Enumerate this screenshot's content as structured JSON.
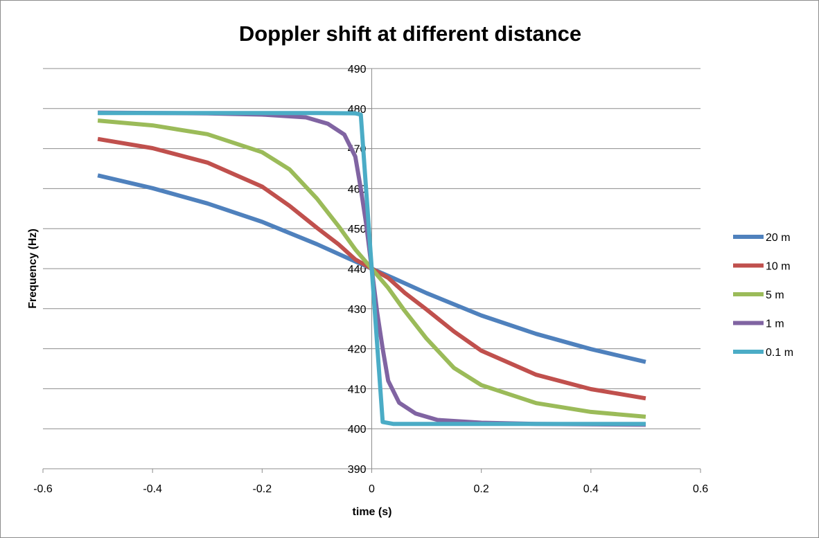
{
  "chart_data": {
    "type": "line",
    "title": "Doppler shift at different distance",
    "xlabel": "time (s)",
    "ylabel": "Frequency (Hz)",
    "xlim": [
      -0.6,
      0.6
    ],
    "ylim": [
      390,
      490
    ],
    "xticks": [
      -0.6,
      -0.4,
      -0.2,
      0,
      0.2,
      0.4,
      0.6
    ],
    "xtick_labels": [
      "-0.6",
      "-0.4",
      "-0.2",
      "0",
      "0.2",
      "0.4",
      "0.6"
    ],
    "yticks": [
      390,
      400,
      410,
      420,
      430,
      440,
      450,
      460,
      470,
      480,
      490
    ],
    "ytick_labels": [
      "390",
      "400",
      "410",
      "420",
      "430",
      "440",
      "450",
      "460",
      "470",
      "480",
      "490"
    ],
    "grid": "horizontal",
    "legend": "right",
    "series": [
      {
        "name": "20 m",
        "color": "#4f81bd",
        "x": [
          -0.5,
          -0.4,
          -0.3,
          -0.2,
          -0.1,
          -0.04,
          0,
          0.04,
          0.1,
          0.2,
          0.3,
          0.4,
          0.5
        ],
        "y": [
          463.3,
          460.1,
          456.3,
          451.7,
          446.1,
          442.4,
          440,
          437.6,
          433.9,
          428.3,
          423.7,
          419.9,
          416.7
        ]
      },
      {
        "name": "10 m",
        "color": "#c0504d",
        "x": [
          -0.5,
          -0.4,
          -0.3,
          -0.2,
          -0.15,
          -0.1,
          -0.06,
          -0.03,
          0,
          0.03,
          0.06,
          0.1,
          0.15,
          0.2,
          0.3,
          0.4,
          0.5
        ],
        "y": [
          472.4,
          470.1,
          466.5,
          460.5,
          455.7,
          450.2,
          446.0,
          442.3,
          440,
          437.7,
          434.0,
          429.8,
          424.3,
          419.5,
          413.5,
          409.9,
          407.6
        ]
      },
      {
        "name": "5 m",
        "color": "#9bbb59",
        "x": [
          -0.5,
          -0.4,
          -0.3,
          -0.2,
          -0.15,
          -0.1,
          -0.06,
          -0.03,
          0,
          0.03,
          0.06,
          0.1,
          0.15,
          0.2,
          0.3,
          0.4,
          0.5
        ],
        "y": [
          477.0,
          475.8,
          473.6,
          469.1,
          464.8,
          457.5,
          450.5,
          444.8,
          440,
          435.2,
          429.5,
          422.5,
          415.2,
          410.9,
          406.4,
          404.2,
          403.0
        ]
      },
      {
        "name": "1 m",
        "color": "#8064a2",
        "x": [
          -0.5,
          -0.3,
          -0.2,
          -0.12,
          -0.08,
          -0.05,
          -0.03,
          -0.02,
          -0.01,
          0,
          0.01,
          0.02,
          0.03,
          0.05,
          0.08,
          0.12,
          0.2,
          0.3,
          0.5
        ],
        "y": [
          479.0,
          478.8,
          478.5,
          477.8,
          476.2,
          473.5,
          468.0,
          460.0,
          451.0,
          440,
          429.0,
          420.0,
          412.0,
          406.5,
          403.8,
          402.2,
          401.5,
          401.2,
          401.0
        ]
      },
      {
        "name": "0.1 m",
        "color": "#4bacc6",
        "x": [
          -0.5,
          -0.1,
          -0.03,
          -0.02,
          0,
          0.02,
          0.04,
          0.1,
          0.5
        ],
        "y": [
          478.9,
          478.9,
          478.8,
          478.5,
          440,
          401.7,
          401.2,
          401.2,
          401.2
        ]
      }
    ]
  }
}
